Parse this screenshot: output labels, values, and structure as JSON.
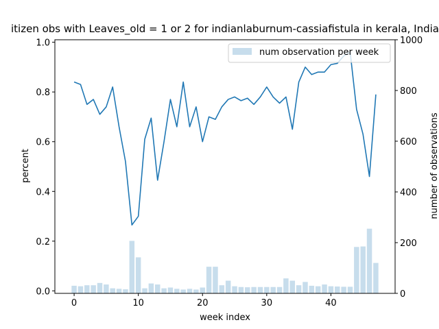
{
  "chart_data": {
    "type": "bar+line",
    "title": "itizen obs with Leaves_old = 1 or 2 for indianlaburnum-cassiafistula in kerala, India",
    "xlabel": "week index",
    "ylabel_left": "percent",
    "ylabel_right": "number of observations",
    "xlim": [
      -3,
      50
    ],
    "ylim_left": [
      -0.01,
      1.01
    ],
    "ylim_right": [
      0,
      1000
    ],
    "x_ticks": [
      0,
      10,
      20,
      30,
      40
    ],
    "y_ticks_left": [
      0.0,
      0.2,
      0.4,
      0.6,
      0.8,
      1.0
    ],
    "y_ticks_left_labels": [
      "0.0",
      "0.2",
      "0.4",
      "0.6",
      "0.8",
      "1.0"
    ],
    "y_ticks_right": [
      0,
      200,
      400,
      600,
      800,
      1000
    ],
    "legend": {
      "placement": "upper-right",
      "entries": [
        "num observation per week"
      ]
    },
    "colors": {
      "line": "#1f77b4",
      "bar": "#1f77b4",
      "bar_opacity": 0.25
    },
    "weeks": [
      0,
      1,
      2,
      3,
      4,
      5,
      6,
      7,
      8,
      9,
      10,
      11,
      12,
      13,
      14,
      15,
      16,
      17,
      18,
      19,
      20,
      21,
      22,
      23,
      24,
      25,
      26,
      27,
      28,
      29,
      30,
      31,
      32,
      33,
      34,
      35,
      36,
      37,
      38,
      39,
      40,
      41,
      42,
      43,
      44,
      45,
      46,
      47
    ],
    "series": [
      {
        "type": "bar",
        "axis": "right",
        "values": [
          30,
          28,
          32,
          32,
          41,
          35,
          20,
          18,
          16,
          207,
          142,
          20,
          39,
          35,
          20,
          23,
          18,
          15,
          18,
          15,
          23,
          105,
          105,
          32,
          50,
          28,
          25,
          24,
          25,
          25,
          25,
          25,
          25,
          59,
          50,
          32,
          45,
          30,
          28,
          35,
          28,
          27,
          26,
          26,
          183,
          185,
          255,
          120
        ]
      },
      {
        "type": "line",
        "axis": "left",
        "values": [
          0.84,
          0.83,
          0.75,
          0.77,
          0.71,
          0.74,
          0.82,
          0.66,
          0.52,
          0.265,
          0.3,
          0.61,
          0.695,
          0.445,
          0.6,
          0.77,
          0.66,
          0.84,
          0.66,
          0.74,
          0.6,
          0.7,
          0.69,
          0.74,
          0.77,
          0.78,
          0.765,
          0.775,
          0.75,
          0.78,
          0.82,
          0.78,
          0.755,
          0.78,
          0.65,
          0.84,
          0.9,
          0.87,
          0.88,
          0.88,
          0.91,
          0.915,
          0.945,
          0.96,
          0.73,
          0.63,
          0.46,
          0.79
        ]
      }
    ]
  }
}
